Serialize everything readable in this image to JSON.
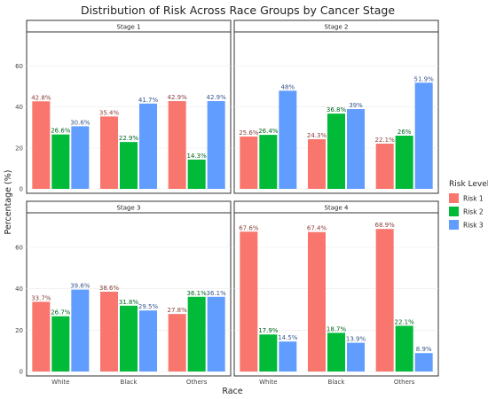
{
  "chart_data": {
    "type": "bar",
    "title": "Distribution of Risk Across Race Groups by Cancer Stage",
    "xlabel": "Race",
    "ylabel": "Percentage (%)",
    "ylim": [
      0,
      75
    ],
    "yticks": [
      0,
      20,
      40,
      60
    ],
    "categories": [
      "White",
      "Black",
      "Others"
    ],
    "legend": {
      "title": "Risk Level",
      "position": "right"
    },
    "grid": true,
    "facets": [
      {
        "title": "Stage 1",
        "series": [
          {
            "name": "Risk 1",
            "color": "#F8766D",
            "values": [
              42.8,
              35.4,
              42.9
            ],
            "labels": [
              "42.8%",
              "35.4%",
              "42.9%"
            ]
          },
          {
            "name": "Risk 2",
            "color": "#00BA38",
            "values": [
              26.6,
              22.9,
              14.3
            ],
            "labels": [
              "26.6%",
              "22.9%",
              "14.3%"
            ]
          },
          {
            "name": "Risk 3",
            "color": "#619CFF",
            "values": [
              30.6,
              41.7,
              42.9
            ],
            "labels": [
              "30.6%",
              "41.7%",
              "42.9%"
            ]
          }
        ]
      },
      {
        "title": "Stage 2",
        "series": [
          {
            "name": "Risk 1",
            "color": "#F8766D",
            "values": [
              25.6,
              24.3,
              22.1
            ],
            "labels": [
              "25.6%",
              "24.3%",
              "22.1%"
            ]
          },
          {
            "name": "Risk 2",
            "color": "#00BA38",
            "values": [
              26.4,
              36.8,
              26
            ],
            "labels": [
              "26.4%",
              "36.8%",
              "26%"
            ]
          },
          {
            "name": "Risk 3",
            "color": "#619CFF",
            "values": [
              48,
              39,
              51.9
            ],
            "labels": [
              "48%",
              "39%",
              "51.9%"
            ]
          }
        ]
      },
      {
        "title": "Stage 3",
        "series": [
          {
            "name": "Risk 1",
            "color": "#F8766D",
            "values": [
              33.7,
              38.6,
              27.8
            ],
            "labels": [
              "33.7%",
              "38.6%",
              "27.8%"
            ]
          },
          {
            "name": "Risk 2",
            "color": "#00BA38",
            "values": [
              26.7,
              31.8,
              36.1
            ],
            "labels": [
              "26.7%",
              "31.8%",
              "36.1%"
            ]
          },
          {
            "name": "Risk 3",
            "color": "#619CFF",
            "values": [
              39.6,
              29.5,
              36.1
            ],
            "labels": [
              "39.6%",
              "29.5%",
              "36.1%"
            ]
          }
        ]
      },
      {
        "title": "Stage 4",
        "series": [
          {
            "name": "Risk 1",
            "color": "#F8766D",
            "values": [
              67.6,
              67.4,
              68.9
            ],
            "labels": [
              "67.6%",
              "67.4%",
              "68.9%"
            ]
          },
          {
            "name": "Risk 2",
            "color": "#00BA38",
            "values": [
              17.9,
              18.7,
              22.1
            ],
            "labels": [
              "17.9%",
              "18.7%",
              "22.1%"
            ]
          },
          {
            "name": "Risk 3",
            "color": "#619CFF",
            "values": [
              14.5,
              13.9,
              8.9
            ],
            "labels": [
              "14.5%",
              "13.9%",
              "8.9%"
            ]
          }
        ]
      }
    ]
  }
}
